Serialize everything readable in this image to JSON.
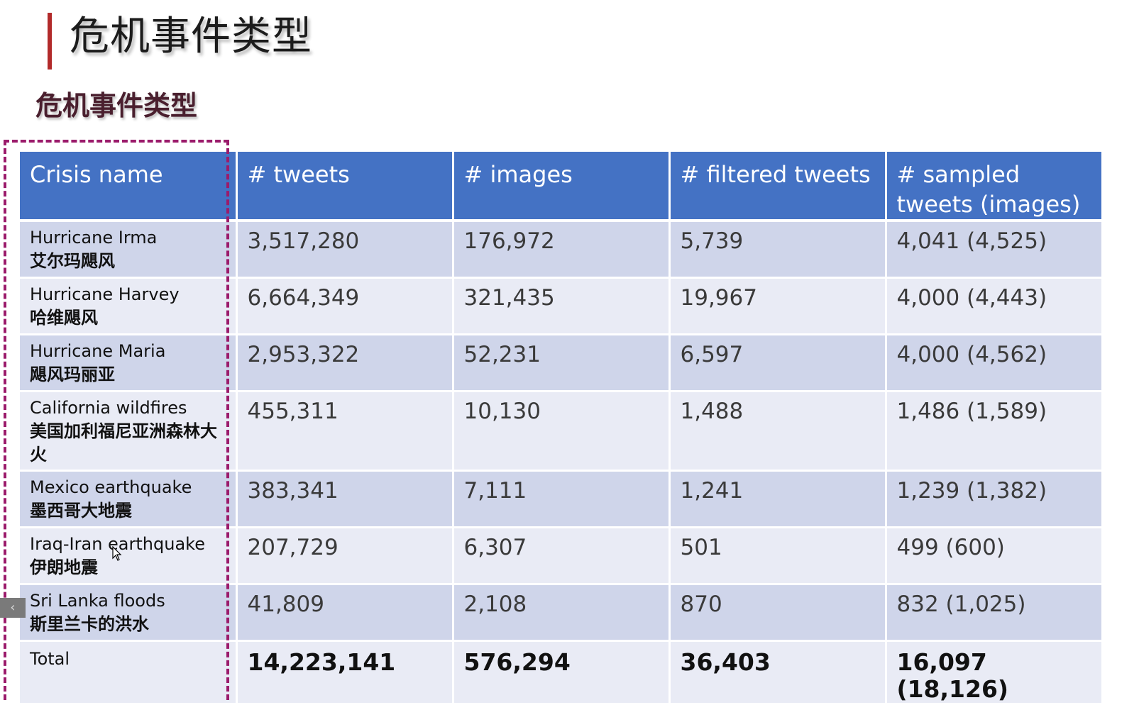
{
  "slide": {
    "title": "危机事件类型",
    "subtitle": "危机事件类型"
  },
  "table": {
    "headers": [
      "Crisis name",
      "# tweets",
      "# images",
      "# filtered tweets",
      "# sampled tweets (images)"
    ],
    "rows": [
      {
        "name_en": "Hurricane Irma",
        "name_zh": "艾尔玛飓风",
        "tweets": "3,517,280",
        "images": "176,972",
        "filtered": "5,739",
        "sampled": "4,041 (4,525)"
      },
      {
        "name_en": "Hurricane Harvey",
        "name_zh": "哈维飓风",
        "tweets": "6,664,349",
        "images": "321,435",
        "filtered": "19,967",
        "sampled": "4,000 (4,443)"
      },
      {
        "name_en": "Hurricane Maria",
        "name_zh": "飓风玛丽亚",
        "tweets": "2,953,322",
        "images": "52,231",
        "filtered": "6,597",
        "sampled": "4,000 (4,562)"
      },
      {
        "name_en": "California wildfires",
        "name_zh": "美国加利福尼亚洲森林大火",
        "tweets": "455,311",
        "images": "10,130",
        "filtered": "1,488",
        "sampled": "1,486 (1,589)"
      },
      {
        "name_en": "Mexico earthquake",
        "name_zh": "墨西哥大地震",
        "tweets": "383,341",
        "images": "7,111",
        "filtered": "1,241",
        "sampled": "1,239 (1,382)"
      },
      {
        "name_en": "Iraq-Iran earthquake",
        "name_zh": "伊朗地震",
        "tweets": "207,729",
        "images": "6,307",
        "filtered": "501",
        "sampled": "499 (600)"
      },
      {
        "name_en": "Sri Lanka floods",
        "name_zh": "斯里兰卡的洪水",
        "tweets": "41,809",
        "images": "2,108",
        "filtered": "870",
        "sampled": "832 (1,025)"
      }
    ],
    "total": {
      "name": "Total",
      "tweets": "14,223,141",
      "images": "576,294",
      "filtered": "36,403",
      "sampled": "16,097 (18,126)"
    }
  },
  "colors": {
    "header_bg": "#4472c4",
    "row_dark": "#cfd5ea",
    "row_light": "#e9ebf5",
    "accent_bar": "#b22a2a",
    "dashed_highlight": "#9b1b6b"
  },
  "icons": {
    "scroll_left": "‹"
  }
}
